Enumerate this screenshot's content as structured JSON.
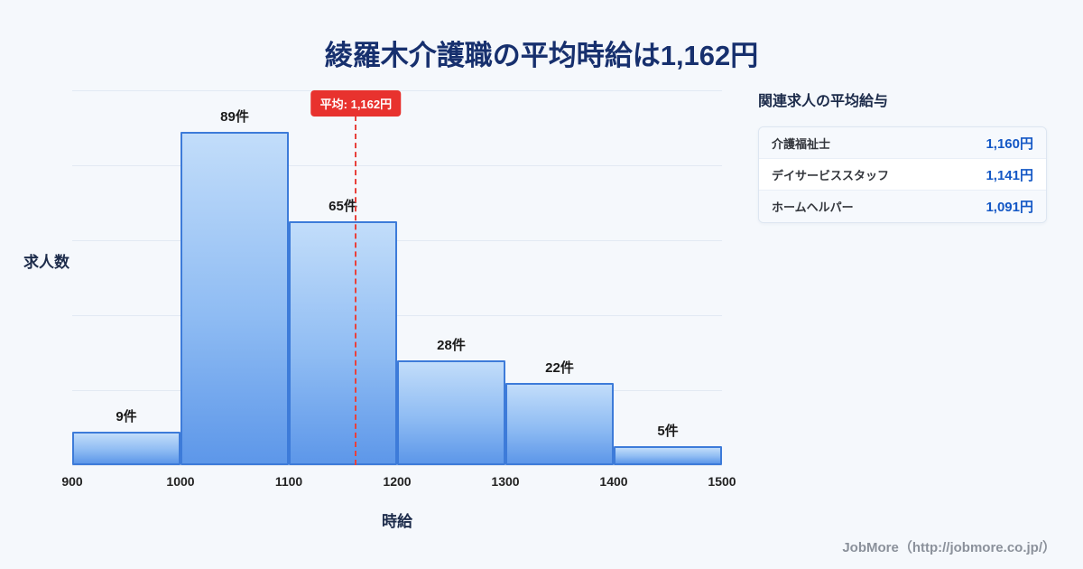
{
  "page": {
    "title": "綾羅木介護職の平均時給は1,162円",
    "footer": "JobMore（http://jobmore.co.jp/）"
  },
  "chart_data": {
    "type": "bar",
    "title": "綾羅木介護職の平均時給は1,162円",
    "xlabel": "時給",
    "ylabel": "求人数",
    "bin_edges": [
      900,
      1000,
      1100,
      1200,
      1300,
      1400,
      1500
    ],
    "categories": [
      "900-1000",
      "1000-1100",
      "1100-1200",
      "1200-1300",
      "1300-1400",
      "1400-1500"
    ],
    "values": [
      9,
      89,
      65,
      28,
      22,
      5
    ],
    "value_labels": [
      "9件",
      "89件",
      "65件",
      "28件",
      "22件",
      "5件"
    ],
    "x_ticks": [
      "900",
      "1000",
      "1100",
      "1200",
      "1300",
      "1400",
      "1500"
    ],
    "ylim": [
      0,
      100
    ],
    "y_grid_interval": 20,
    "grid": true,
    "legend": "none",
    "mean_line": {
      "value": 1162,
      "label": "平均: 1,162円",
      "color": "#e8413c"
    },
    "bar_color_top": "#c2ddfa",
    "bar_color_bottom": "#5d97e9",
    "bar_border_color": "#3d7bd9"
  },
  "side_panel": {
    "heading": "関連求人の平均給与",
    "rows": [
      {
        "label": "介護福祉士",
        "value": "1,160円"
      },
      {
        "label": "デイサービススタッフ",
        "value": "1,141円"
      },
      {
        "label": "ホームヘルパー",
        "value": "1,091円"
      }
    ]
  },
  "colors": {
    "background": "#f5f8fc",
    "title": "#17306e",
    "accent_red": "#e8322e",
    "value_blue": "#1357c5"
  }
}
